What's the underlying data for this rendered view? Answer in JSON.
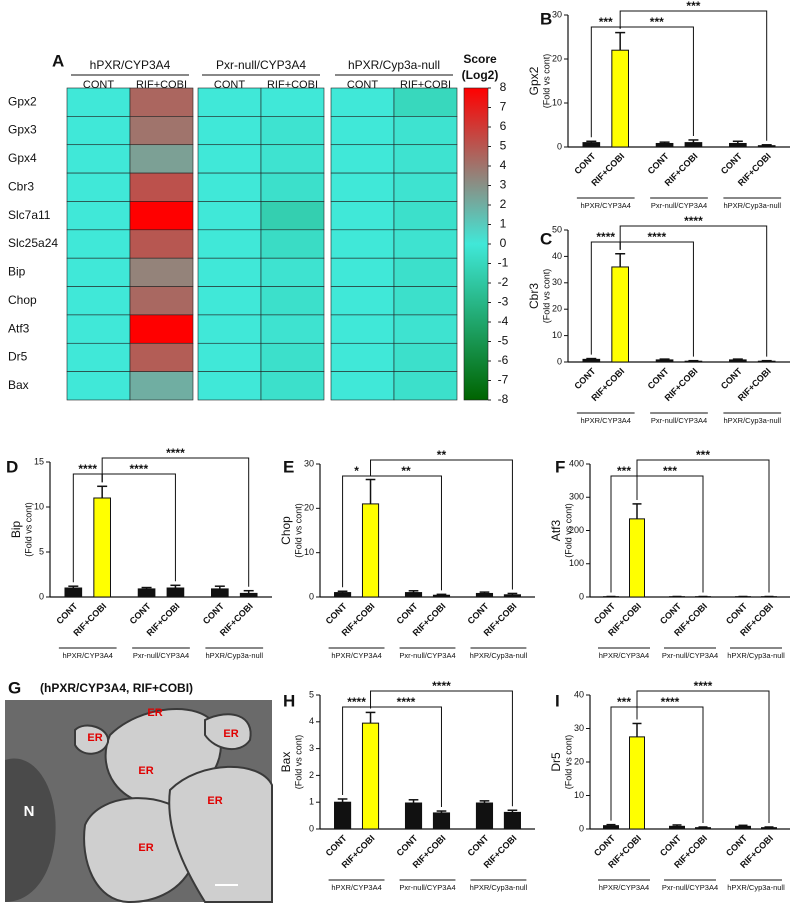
{
  "chart_data": [
    {
      "type": "heatmap",
      "panel": "A",
      "groups": [
        "hPXR/CYP3A4",
        "Pxr-null/CYP3A4",
        "hPXR/Cyp3a-null"
      ],
      "categories": [
        "CONT",
        "RIF+COBI",
        "CONT",
        "RIF+COBI",
        "CONT",
        "RIF+COBI"
      ],
      "rows": [
        "Gpx2",
        "Gpx3",
        "Gpx4",
        "Cbr3",
        "Slc7a11",
        "Slc25a24",
        "Bip",
        "Chop",
        "Atf3",
        "Dr5",
        "Bax"
      ],
      "values": [
        [
          0,
          4.5,
          0,
          0,
          0,
          -1
        ],
        [
          0,
          4,
          0,
          -0.3,
          0,
          -0.3
        ],
        [
          0,
          2.5,
          0,
          -0.3,
          0,
          -0.3
        ],
        [
          0,
          5.2,
          0,
          -0.5,
          0,
          -0.3
        ],
        [
          0,
          8,
          0,
          -1.5,
          0,
          -0.5
        ],
        [
          0,
          5,
          0,
          -0.7,
          0,
          -0.3
        ],
        [
          0,
          3.5,
          0,
          -0.3,
          0,
          -0.5
        ],
        [
          0,
          4.4,
          0,
          -0.5,
          0,
          -0.5
        ],
        [
          0,
          8,
          0,
          -0.3,
          0,
          -0.3
        ],
        [
          0,
          4.8,
          0,
          -0.5,
          0,
          -0.5
        ],
        [
          0,
          2,
          0,
          -0.5,
          0,
          -0.5
        ]
      ],
      "colorbar_title": "Score",
      "colorbar_subtitle": "(Log2)",
      "clim": [
        -8,
        8
      ],
      "cticks": [
        8,
        7,
        6,
        5,
        4,
        3,
        2,
        1,
        0,
        -1,
        -2,
        -3,
        -4,
        -5,
        -6,
        -7,
        -8
      ],
      "colorscale": [
        {
          "value": 8,
          "color": "#ff0000"
        },
        {
          "value": 0,
          "color": "#40e8d8"
        },
        {
          "value": -8,
          "color": "#006400"
        }
      ]
    },
    {
      "type": "bar",
      "panel": "B",
      "ylabel": "Gpx2",
      "ylabel_sub": "(Fold vs cont)",
      "categories": [
        "CONT",
        "RIF+COBI",
        "CONT",
        "RIF+COBI",
        "CONT",
        "RIF+COBI"
      ],
      "groups": [
        "hPXR/CYP3A4",
        "Pxr-null/CYP3A4",
        "hPXR/Cyp3a-null"
      ],
      "values": [
        1,
        22,
        0.8,
        1,
        0.8,
        0.3
      ],
      "errors": [
        0.3,
        4,
        0.3,
        0.6,
        0.5,
        0.2
      ],
      "colors": [
        "#111111",
        "#ffff00",
        "#111111",
        "#111111",
        "#111111",
        "#111111"
      ],
      "ylim": [
        0,
        30
      ],
      "yticks": [
        0,
        10,
        20,
        30
      ],
      "significance": [
        "***",
        "***",
        "***"
      ]
    },
    {
      "type": "bar",
      "panel": "C",
      "ylabel": "Cbr3",
      "ylabel_sub": "(Fold vs cont)",
      "categories": [
        "CONT",
        "RIF+COBI",
        "CONT",
        "RIF+COBI",
        "CONT",
        "RIF+COBI"
      ],
      "groups": [
        "hPXR/CYP3A4",
        "Pxr-null/CYP3A4",
        "hPXR/Cyp3a-null"
      ],
      "values": [
        1,
        36,
        0.8,
        0.3,
        0.8,
        0.3
      ],
      "errors": [
        0.3,
        5,
        0.3,
        0.2,
        0.3,
        0.2
      ],
      "colors": [
        "#111111",
        "#ffff00",
        "#111111",
        "#111111",
        "#111111",
        "#111111"
      ],
      "ylim": [
        0,
        50
      ],
      "yticks": [
        0,
        10,
        20,
        30,
        40,
        50
      ],
      "significance": [
        "****",
        "****",
        "****"
      ]
    },
    {
      "type": "bar",
      "panel": "D",
      "ylabel": "Bip",
      "ylabel_sub": "(Fold vs cont)",
      "categories": [
        "CONT",
        "RIF+COBI",
        "CONT",
        "RIF+COBI",
        "CONT",
        "RIF+COBI"
      ],
      "groups": [
        "hPXR/CYP3A4",
        "Pxr-null/CYP3A4",
        "hPXR/Cyp3a-null"
      ],
      "values": [
        1,
        11,
        0.9,
        1,
        0.9,
        0.4
      ],
      "errors": [
        0.2,
        1.3,
        0.15,
        0.3,
        0.3,
        0.3
      ],
      "colors": [
        "#111111",
        "#ffff00",
        "#111111",
        "#111111",
        "#111111",
        "#111111"
      ],
      "ylim": [
        0,
        15
      ],
      "yticks": [
        0,
        5,
        10,
        15
      ],
      "significance": [
        "****",
        "****",
        "****"
      ]
    },
    {
      "type": "bar",
      "panel": "E",
      "ylabel": "Chop",
      "ylabel_sub": "(Fold vs cont)",
      "categories": [
        "CONT",
        "RIF+COBI",
        "CONT",
        "RIF+COBI",
        "CONT",
        "RIF+COBI"
      ],
      "groups": [
        "hPXR/CYP3A4",
        "Pxr-null/CYP3A4",
        "hPXR/Cyp3a-null"
      ],
      "values": [
        1,
        21,
        1,
        0.4,
        0.8,
        0.5
      ],
      "errors": [
        0.3,
        5.5,
        0.4,
        0.2,
        0.3,
        0.3
      ],
      "colors": [
        "#111111",
        "#ffff00",
        "#111111",
        "#111111",
        "#111111",
        "#111111"
      ],
      "ylim": [
        0,
        30
      ],
      "yticks": [
        0,
        10,
        20,
        30
      ],
      "significance": [
        "*",
        "**",
        "**"
      ]
    },
    {
      "type": "bar",
      "panel": "F",
      "ylabel": "Atf3",
      "ylabel_sub": "(Fold vs cont)",
      "categories": [
        "CONT",
        "RIF+COBI",
        "CONT",
        "RIF+COBI",
        "CONT",
        "RIF+COBI"
      ],
      "groups": [
        "hPXR/CYP3A4",
        "Pxr-null/CYP3A4",
        "hPXR/Cyp3a-null"
      ],
      "values": [
        1,
        235,
        1,
        1,
        1,
        1
      ],
      "errors": [
        0.5,
        45,
        0.5,
        0.5,
        0.5,
        0.5
      ],
      "colors": [
        "#111111",
        "#ffff00",
        "#111111",
        "#111111",
        "#111111",
        "#111111"
      ],
      "ylim": [
        0,
        400
      ],
      "yticks": [
        0,
        100,
        200,
        300,
        400
      ],
      "significance": [
        "***",
        "***",
        "***"
      ]
    },
    {
      "type": "image",
      "panel": "G",
      "title": "(hPXR/CYP3A4, RIF+COBI)",
      "labels": [
        "ER",
        "ER",
        "ER",
        "ER",
        "ER",
        "ER",
        "N"
      ]
    },
    {
      "type": "bar",
      "panel": "H",
      "ylabel": "Bax",
      "ylabel_sub": "(Fold vs cont)",
      "categories": [
        "CONT",
        "RIF+COBI",
        "CONT",
        "RIF+COBI",
        "CONT",
        "RIF+COBI"
      ],
      "groups": [
        "hPXR/CYP3A4",
        "Pxr-null/CYP3A4",
        "hPXR/Cyp3a-null"
      ],
      "values": [
        1,
        3.95,
        0.97,
        0.6,
        0.97,
        0.62
      ],
      "errors": [
        0.12,
        0.4,
        0.12,
        0.07,
        0.08,
        0.08
      ],
      "colors": [
        "#111111",
        "#ffff00",
        "#111111",
        "#111111",
        "#111111",
        "#111111"
      ],
      "ylim": [
        0,
        5
      ],
      "yticks": [
        0,
        1,
        2,
        3,
        4,
        5
      ],
      "significance": [
        "****",
        "****",
        "****"
      ]
    },
    {
      "type": "bar",
      "panel": "I",
      "ylabel": "Dr5",
      "ylabel_sub": "(Fold vs cont)",
      "categories": [
        "CONT",
        "RIF+COBI",
        "CONT",
        "RIF+COBI",
        "CONT",
        "RIF+COBI"
      ],
      "groups": [
        "hPXR/CYP3A4",
        "Pxr-null/CYP3A4",
        "hPXR/Cyp3a-null"
      ],
      "values": [
        1,
        27.5,
        0.8,
        0.4,
        0.8,
        0.4
      ],
      "errors": [
        0.3,
        4,
        0.4,
        0.2,
        0.3,
        0.2
      ],
      "colors": [
        "#111111",
        "#ffff00",
        "#111111",
        "#111111",
        "#111111",
        "#111111"
      ],
      "ylim": [
        0,
        40
      ],
      "yticks": [
        0,
        10,
        20,
        30,
        40
      ],
      "significance": [
        "***",
        "****",
        "****"
      ]
    }
  ]
}
